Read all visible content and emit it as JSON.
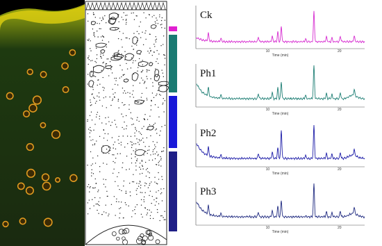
{
  "panels": [
    {
      "label": "Ck",
      "color": "#d62bd0",
      "bar_color": "#e020d0"
    },
    {
      "label": "Ph1",
      "color": "#1f7f75",
      "bar_color": "#1a7a72"
    },
    {
      "label": "Ph2",
      "color": "#1c1ca8",
      "bar_color": "#1818d8"
    },
    {
      "label": "Ph3",
      "color": "#1f2a80",
      "bar_color": "#1e1e86"
    }
  ],
  "axis_label": "Time (min)",
  "x_ticks": [
    "10",
    "20"
  ]
}
